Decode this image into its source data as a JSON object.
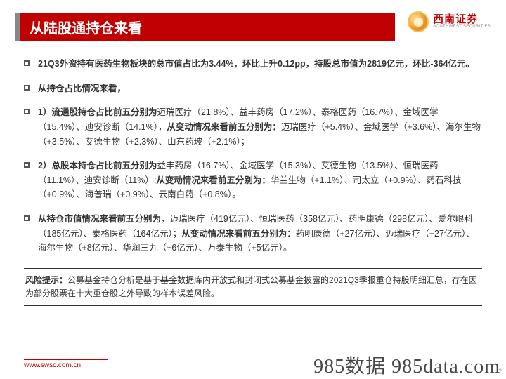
{
  "header": {
    "title": "从陆股通持仓来看",
    "logo_cn": "西南证券",
    "logo_en": "SOUTHWEST SECURITIES"
  },
  "bullets": [
    {
      "html": "<span class='bold'>21Q3外资持有医药生物板块的总市值占比为3.44%，环比上升0.12pp，持股总市值为2819亿元，环比-364亿元。</span>"
    },
    {
      "html": "<span class='bold'>从持仓占比情况来看，</span>"
    },
    {
      "html": "<span class='bold'>1）流通股持仓占比前五分别为</span>迈瑞医疗（21.8%）、益丰药房（17.2%）、泰格医药（16.7%）、金域医学（15.4%）、迪安诊断（14.1%），<span class='bold'>从变动情况来看前五分别为：</span>迈瑞医疗（+5.4%）、金域医学（+3.6%）、海尔生物（+3.5%）、艾德生物（+2.3%）、山东药玻（+2.1%）；"
    },
    {
      "html": "<span class='bold'>2）总股本持仓占比前五分别为</span>益丰药房（16.7%）、金域医学（15.3%）、艾德生物（13.5%）、恒瑞医药（11.1%）、迪安诊断（11%）;<span class='bold'>从变动情况来看前五分别为：</span>华兰生物（+1.1%）、司太立（+0.9%）、药石科技（+0.9%）、海普瑞（+0.9%）、云南白药（+0.8%）。"
    },
    {
      "html": "<span class='bold'>从持仓市值情况来看前五分别为</span>，迈瑞医疗（419亿元）、恒瑞医药（358亿元）、药明康德（298亿元）、爱尔眼科（185亿元）、泰格医药（164亿元）；<span class='bold'>从变动情况来看前五分别为：</span>药明康德（+27亿元）、迈瑞医疗（+27亿元）、海尔生物（+8亿元）、华润三九（+6亿元）、万泰生物（+5亿元）。"
    }
  ],
  "risk": {
    "label": "风险提示：",
    "text": "公募基金持仓分析是基于<s>基金</s>数据库内开放式和封闭式公募基金披露的2021Q3季报重仓持股明细汇总，存在因为部分股票在十大重仓股之外导致的样本误差风险。"
  },
  "footer": {
    "url": "www.swsc.com.cn",
    "watermark": "985数据 985data.com",
    "page": "2"
  },
  "colors": {
    "brand_red": "#c00000",
    "text": "#333333",
    "bg": "#ffffff"
  }
}
